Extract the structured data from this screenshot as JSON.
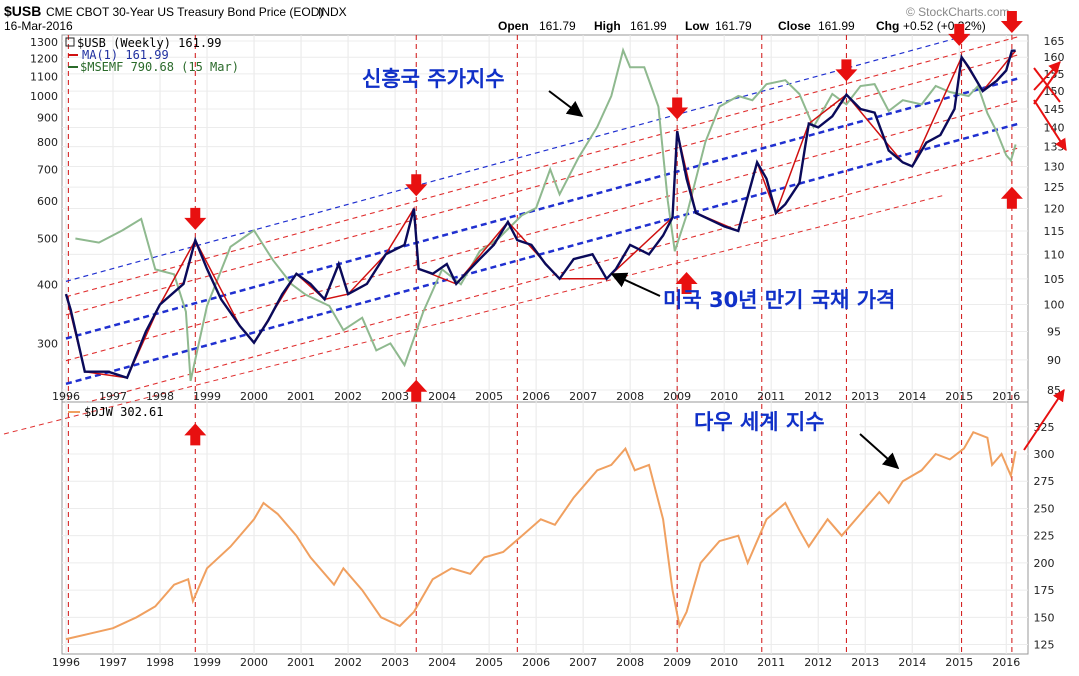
{
  "header": {
    "symbol": "$USB",
    "title": "CME CBOT 30-Year US Treasury Bond Price (EOD)",
    "suffix": "INDX",
    "date": "16-Mar-2016",
    "open_label": "Open",
    "open": "161.79",
    "high_label": "High",
    "high": "161.99",
    "low_label": "Low",
    "low": "161.79",
    "close_label": "Close",
    "close": "161.99",
    "chg_label": "Chg",
    "chg": "+0.52 (+0.32%)",
    "watermark": "© StockCharts.com"
  },
  "legend": {
    "usb": "$USB (Weekly) 161.99",
    "ma": "MA(1) 161.99",
    "msemf": "$MSEMF 790.68 (15 Mar)",
    "djw": "$DJW 302.61"
  },
  "annotations": {
    "emerging": "신흥국 주가지수",
    "bond": "미국 30년 만기 국채 가격",
    "dow": "다우 세계 지수"
  },
  "colors": {
    "usb": "#0a0a5a",
    "ma": "#d01010",
    "msemf": "#8fb98f",
    "djw": "#f0a060",
    "channel_blue": "#2030d0",
    "channel_red": "#e03030",
    "marker": "#e81010",
    "annotation": "#1030c8"
  },
  "chart_data": [
    {
      "type": "line",
      "title": "CME CBOT 30-Year US Treasury Bond Price (EOD) - Weekly",
      "x_range": [
        1996.0,
        2016.25
      ],
      "x_ticks": [
        "1996",
        "1997",
        "1998",
        "1999",
        "2000",
        "2001",
        "2002",
        "2003",
        "2004",
        "2005",
        "2006",
        "2007",
        "2008",
        "2009",
        "2010",
        "2011",
        "2012",
        "2013",
        "2014",
        "2015",
        "2016"
      ],
      "right_axis": {
        "label": "$USB",
        "range": [
          85,
          165
        ],
        "scale": "log",
        "ticks": [
          "85",
          "90",
          "95",
          "100",
          "105",
          "110",
          "115",
          "120",
          "125",
          "130",
          "135",
          "140",
          "145",
          "150",
          "155",
          "160",
          "165"
        ]
      },
      "left_axis": {
        "label": "$MSEMF",
        "range": [
          230,
          1320
        ],
        "scale": "log",
        "ticks": [
          "300",
          "400",
          "500",
          "600",
          "700",
          "800",
          "900",
          "1000",
          "1100",
          "1200",
          "1300"
        ]
      },
      "series": [
        {
          "name": "$USB",
          "axis": "right",
          "points": [
            [
              1996.0,
              102
            ],
            [
              1996.1,
              99
            ],
            [
              1996.4,
              88
            ],
            [
              1996.9,
              88
            ],
            [
              1997.3,
              87
            ],
            [
              1997.7,
              95
            ],
            [
              1998.0,
              100
            ],
            [
              1998.5,
              104
            ],
            [
              1998.75,
              113
            ],
            [
              1999.0,
              107
            ],
            [
              1999.3,
              101
            ],
            [
              1999.7,
              96
            ],
            [
              2000.0,
              93
            ],
            [
              2000.3,
              97
            ],
            [
              2000.6,
              102
            ],
            [
              2000.9,
              106
            ],
            [
              2001.2,
              104
            ],
            [
              2001.5,
              101
            ],
            [
              2001.8,
              108
            ],
            [
              2002.0,
              102
            ],
            [
              2002.4,
              104
            ],
            [
              2002.8,
              110
            ],
            [
              2003.2,
              112
            ],
            [
              2003.4,
              120
            ],
            [
              2003.5,
              107
            ],
            [
              2003.8,
              106
            ],
            [
              2004.1,
              108
            ],
            [
              2004.3,
              104
            ],
            [
              2004.5,
              106
            ],
            [
              2004.8,
              109
            ],
            [
              2005.1,
              112
            ],
            [
              2005.4,
              117
            ],
            [
              2005.6,
              113
            ],
            [
              2005.9,
              112
            ],
            [
              2006.2,
              108
            ],
            [
              2006.5,
              105
            ],
            [
              2006.8,
              109
            ],
            [
              2007.2,
              110
            ],
            [
              2007.5,
              105
            ],
            [
              2007.7,
              107
            ],
            [
              2008.0,
              112
            ],
            [
              2008.4,
              110
            ],
            [
              2008.7,
              114
            ],
            [
              2008.9,
              118
            ],
            [
              2009.0,
              139
            ],
            [
              2009.2,
              127
            ],
            [
              2009.4,
              119
            ],
            [
              2009.8,
              117
            ],
            [
              2010.0,
              116
            ],
            [
              2010.3,
              115
            ],
            [
              2010.7,
              131
            ],
            [
              2010.9,
              127
            ],
            [
              2011.1,
              119
            ],
            [
              2011.3,
              121
            ],
            [
              2011.6,
              126
            ],
            [
              2011.8,
              141
            ],
            [
              2012.0,
              140
            ],
            [
              2012.3,
              143
            ],
            [
              2012.6,
              149
            ],
            [
              2012.9,
              145
            ],
            [
              2013.2,
              144
            ],
            [
              2013.5,
              134
            ],
            [
              2013.8,
              131
            ],
            [
              2014.0,
              130
            ],
            [
              2014.3,
              136
            ],
            [
              2014.6,
              138
            ],
            [
              2014.9,
              145
            ],
            [
              2015.05,
              160
            ],
            [
              2015.2,
              157
            ],
            [
              2015.5,
              150
            ],
            [
              2015.8,
              153
            ],
            [
              2016.0,
              156
            ],
            [
              2016.12,
              162
            ],
            [
              2016.2,
              161.99
            ]
          ]
        },
        {
          "name": "MA(1)",
          "axis": "right",
          "points": [
            [
              1996.0,
              102
            ],
            [
              1996.4,
              88
            ],
            [
              1997.3,
              87
            ],
            [
              1998.0,
              100
            ],
            [
              1998.75,
              113
            ],
            [
              1999.7,
              96
            ],
            [
              2000.0,
              93
            ],
            [
              2000.9,
              106
            ],
            [
              2001.5,
              101
            ],
            [
              2002.0,
              102
            ],
            [
              2002.8,
              110
            ],
            [
              2003.4,
              120
            ],
            [
              2003.5,
              107
            ],
            [
              2004.3,
              104
            ],
            [
              2005.4,
              117
            ],
            [
              2006.5,
              105
            ],
            [
              2007.5,
              105
            ],
            [
              2008.9,
              118
            ],
            [
              2009.0,
              139
            ],
            [
              2009.4,
              119
            ],
            [
              2010.3,
              115
            ],
            [
              2010.7,
              131
            ],
            [
              2011.1,
              119
            ],
            [
              2011.8,
              141
            ],
            [
              2012.6,
              149
            ],
            [
              2013.8,
              131
            ],
            [
              2014.0,
              130
            ],
            [
              2015.05,
              160
            ],
            [
              2015.5,
              150
            ],
            [
              2016.2,
              161.99
            ]
          ]
        },
        {
          "name": "$MSEMF",
          "axis": "left",
          "points": [
            [
              1996.2,
              500
            ],
            [
              1996.7,
              490
            ],
            [
              1997.2,
              520
            ],
            [
              1997.6,
              550
            ],
            [
              1997.9,
              430
            ],
            [
              1998.3,
              420
            ],
            [
              1998.55,
              350
            ],
            [
              1998.65,
              250
            ],
            [
              1999.0,
              360
            ],
            [
              1999.5,
              480
            ],
            [
              2000.0,
              520
            ],
            [
              2000.4,
              450
            ],
            [
              2000.8,
              400
            ],
            [
              2001.1,
              380
            ],
            [
              2001.6,
              360
            ],
            [
              2001.9,
              320
            ],
            [
              2002.3,
              340
            ],
            [
              2002.6,
              290
            ],
            [
              2002.9,
              300
            ],
            [
              2003.2,
              270
            ],
            [
              2003.6,
              350
            ],
            [
              2004.0,
              430
            ],
            [
              2004.4,
              400
            ],
            [
              2004.8,
              470
            ],
            [
              2005.2,
              500
            ],
            [
              2005.7,
              560
            ],
            [
              2006.0,
              580
            ],
            [
              2006.3,
              700
            ],
            [
              2006.5,
              620
            ],
            [
              2006.9,
              740
            ],
            [
              2007.3,
              860
            ],
            [
              2007.6,
              1000
            ],
            [
              2007.85,
              1250
            ],
            [
              2008.0,
              1150
            ],
            [
              2008.3,
              1150
            ],
            [
              2008.6,
              950
            ],
            [
              2008.8,
              600
            ],
            [
              2008.95,
              470
            ],
            [
              2009.2,
              560
            ],
            [
              2009.6,
              800
            ],
            [
              2009.9,
              950
            ],
            [
              2010.3,
              1000
            ],
            [
              2010.6,
              980
            ],
            [
              2010.9,
              1060
            ],
            [
              2011.3,
              1080
            ],
            [
              2011.6,
              1010
            ],
            [
              2011.9,
              860
            ],
            [
              2012.3,
              1010
            ],
            [
              2012.6,
              960
            ],
            [
              2012.9,
              1050
            ],
            [
              2013.2,
              1060
            ],
            [
              2013.5,
              930
            ],
            [
              2013.8,
              980
            ],
            [
              2014.2,
              960
            ],
            [
              2014.5,
              1050
            ],
            [
              2014.8,
              1020
            ],
            [
              2015.2,
              1000
            ],
            [
              2015.4,
              1050
            ],
            [
              2015.6,
              920
            ],
            [
              2015.8,
              840
            ],
            [
              2016.0,
              750
            ],
            [
              2016.1,
              730
            ],
            [
              2016.2,
              790
            ]
          ]
        }
      ]
    },
    {
      "type": "line",
      "title": "$DJW Dow Jones World Index",
      "x_range": [
        1996.0,
        2016.25
      ],
      "y_range": [
        120,
        345
      ],
      "y_ticks": [
        "125",
        "150",
        "175",
        "200",
        "225",
        "250",
        "275",
        "300",
        "325"
      ],
      "series": [
        {
          "name": "$DJW",
          "points": [
            [
              1996.0,
              130
            ],
            [
              1996.5,
              135
            ],
            [
              1997.0,
              140
            ],
            [
              1997.5,
              150
            ],
            [
              1997.9,
              160
            ],
            [
              1998.3,
              180
            ],
            [
              1998.6,
              185
            ],
            [
              1998.7,
              165
            ],
            [
              1999.0,
              195
            ],
            [
              1999.5,
              215
            ],
            [
              2000.0,
              240
            ],
            [
              2000.2,
              255
            ],
            [
              2000.5,
              245
            ],
            [
              2000.9,
              225
            ],
            [
              2001.2,
              205
            ],
            [
              2001.7,
              180
            ],
            [
              2001.9,
              195
            ],
            [
              2002.3,
              175
            ],
            [
              2002.7,
              150
            ],
            [
              2003.1,
              142
            ],
            [
              2003.4,
              155
            ],
            [
              2003.8,
              185
            ],
            [
              2004.2,
              195
            ],
            [
              2004.6,
              190
            ],
            [
              2004.9,
              205
            ],
            [
              2005.3,
              210
            ],
            [
              2005.7,
              225
            ],
            [
              2006.1,
              240
            ],
            [
              2006.4,
              235
            ],
            [
              2006.8,
              260
            ],
            [
              2007.3,
              285
            ],
            [
              2007.6,
              290
            ],
            [
              2007.9,
              305
            ],
            [
              2008.1,
              285
            ],
            [
              2008.4,
              290
            ],
            [
              2008.7,
              240
            ],
            [
              2008.9,
              175
            ],
            [
              2009.05,
              142
            ],
            [
              2009.2,
              155
            ],
            [
              2009.5,
              200
            ],
            [
              2009.9,
              220
            ],
            [
              2010.3,
              225
            ],
            [
              2010.5,
              200
            ],
            [
              2010.9,
              240
            ],
            [
              2011.3,
              255
            ],
            [
              2011.6,
              230
            ],
            [
              2011.8,
              215
            ],
            [
              2012.2,
              240
            ],
            [
              2012.5,
              225
            ],
            [
              2012.9,
              245
            ],
            [
              2013.3,
              265
            ],
            [
              2013.5,
              255
            ],
            [
              2013.8,
              275
            ],
            [
              2014.2,
              285
            ],
            [
              2014.5,
              300
            ],
            [
              2014.8,
              295
            ],
            [
              2015.1,
              305
            ],
            [
              2015.3,
              320
            ],
            [
              2015.6,
              315
            ],
            [
              2015.7,
              290
            ],
            [
              2015.9,
              300
            ],
            [
              2016.1,
              280
            ],
            [
              2016.2,
              302.61
            ]
          ]
        }
      ]
    }
  ]
}
